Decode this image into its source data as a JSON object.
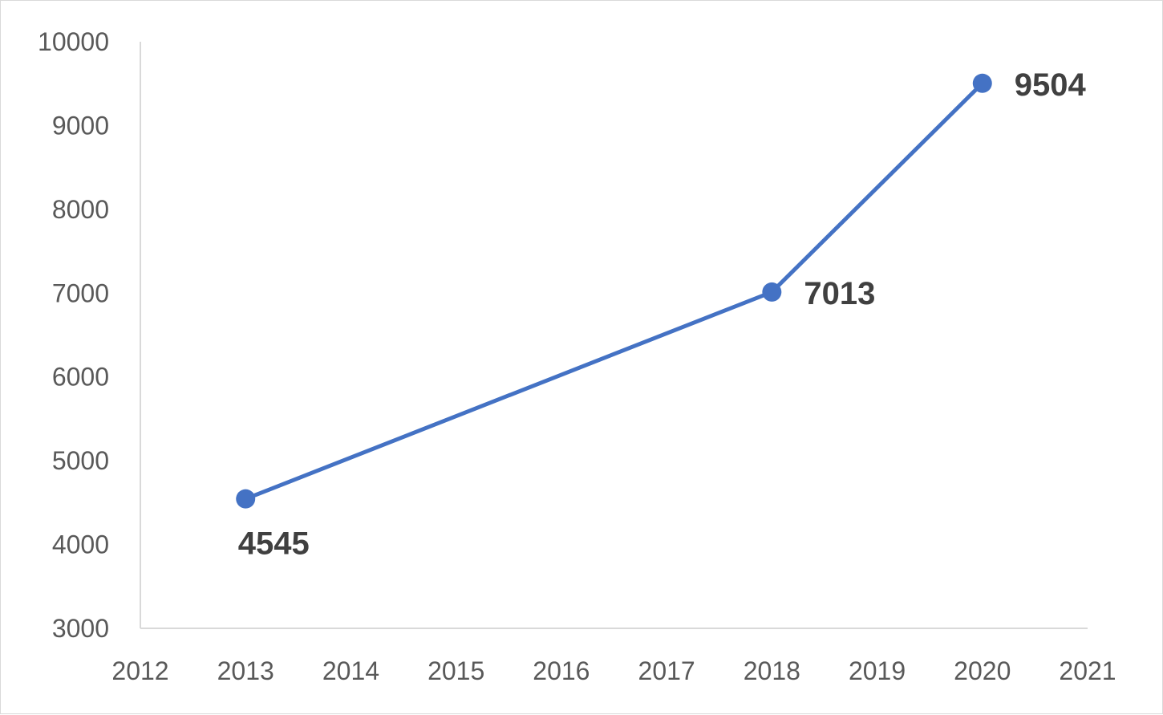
{
  "chart_data": {
    "type": "line",
    "title": "",
    "xlabel": "",
    "ylabel": "",
    "xlim": [
      2012,
      2021
    ],
    "ylim": [
      3000,
      10000
    ],
    "x_ticks": [
      "2012",
      "2013",
      "2014",
      "2015",
      "2016",
      "2017",
      "2018",
      "2019",
      "2020",
      "2021"
    ],
    "y_ticks": [
      "3000",
      "4000",
      "5000",
      "6000",
      "7000",
      "8000",
      "9000",
      "10000"
    ],
    "grid": false,
    "legend": "none",
    "series": [
      {
        "color": "#4472c4",
        "points": [
          {
            "x": 2013,
            "y": 4545,
            "label": "4545",
            "label_position": "below"
          },
          {
            "x": 2018,
            "y": 7013,
            "label": "7013",
            "label_position": "right"
          },
          {
            "x": 2020,
            "y": 9504,
            "label": "9504",
            "label_position": "right"
          }
        ]
      }
    ]
  }
}
